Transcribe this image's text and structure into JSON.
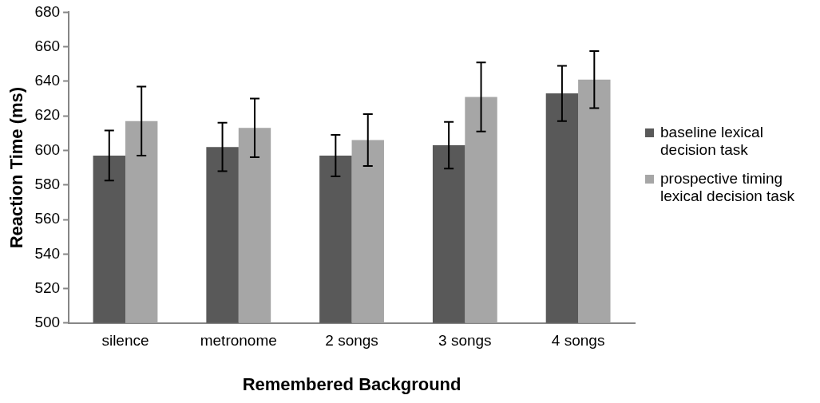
{
  "chart_data": {
    "type": "bar",
    "xlabel": "Remembered Background",
    "ylabel": "Reaction Time (ms)",
    "categories": [
      "silence",
      "metronome",
      "2 songs",
      "3 songs",
      "4 songs"
    ],
    "series": [
      {
        "name": "baseline lexical decision task",
        "color": "#595959",
        "values": [
          597,
          602,
          597,
          603,
          633
        ],
        "errors": [
          14.5,
          14,
          12,
          13.5,
          16
        ]
      },
      {
        "name": "prospective timing lexical decision task",
        "color": "#a6a6a6",
        "values": [
          617,
          613,
          606,
          631,
          641
        ],
        "errors": [
          20,
          17,
          15,
          20,
          16.5
        ]
      }
    ],
    "ylim": [
      500,
      680
    ],
    "yticks": [
      500,
      520,
      540,
      560,
      580,
      600,
      620,
      640,
      660,
      680
    ],
    "grid": false,
    "legend": "right"
  }
}
